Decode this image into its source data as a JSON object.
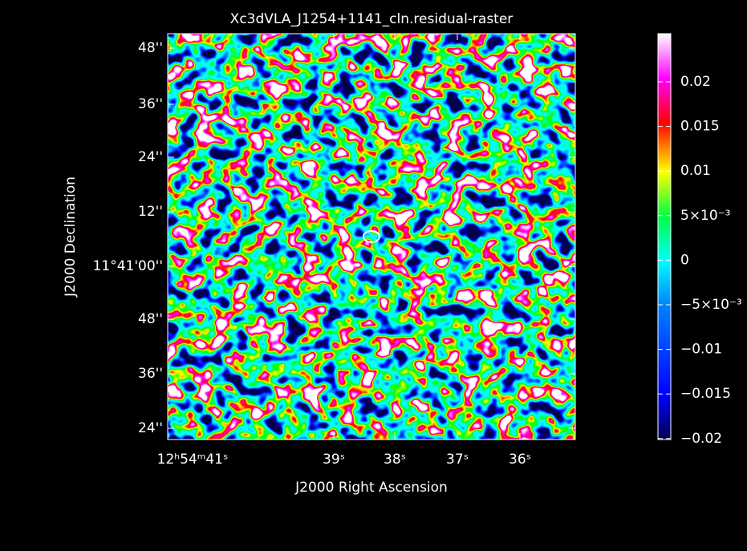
{
  "title": "Xc3dVLA_J1254+1141_cln.residual-raster",
  "x_axis": {
    "label": "J2000 Right Ascension",
    "ticks": [
      "12ʰ54ᵐ41ˢ",
      "39ˢ",
      "38ˢ",
      "37ˢ",
      "36ˢ"
    ]
  },
  "y_axis": {
    "label": "J2000 Declination",
    "ticks": [
      "48''",
      "36''",
      "24''",
      "12''",
      "11°41'00''",
      "48''",
      "36''",
      "24''"
    ]
  },
  "colorbar": {
    "ticks": [
      "0.02",
      "0.015",
      "0.01",
      "5×10⁻³",
      "0",
      "−5×10⁻³",
      "−0.01",
      "−0.015",
      "−0.02"
    ]
  }
}
